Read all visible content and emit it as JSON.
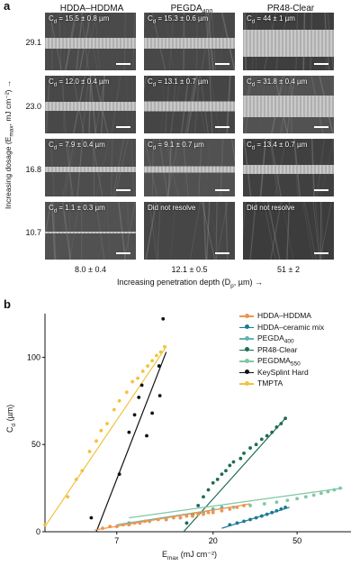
{
  "panel_a": {
    "label": "a",
    "columns": [
      "HDDA–HDDMA",
      "PEGDA",
      "PR48-Clear"
    ],
    "pegda_sub": "400",
    "row_dosages": [
      "29.1",
      "23.0",
      "16.8",
      "10.7"
    ],
    "y_axis_label": "Increasing dosage (E",
    "y_axis_sub": "max",
    "y_axis_tail": ", mJ cm⁻²) →",
    "x_axis_label": "Increasing penetration depth (D",
    "x_axis_sub": "p",
    "x_axis_tail": ", µm) →",
    "penetration_depths": [
      "8.0 ± 0.4",
      "12.1 ± 0.5",
      "51 ± 2"
    ],
    "cell_captions": [
      [
        "= 15.5 ± 0.8 µm",
        "= 15.3 ± 0.6 µm",
        "= 44 ± 1 µm"
      ],
      [
        "= 12.0 ± 0.4 µm",
        "= 13.1 ± 0.7 µm",
        "= 31.8 ± 0.4 µm"
      ],
      [
        "= 7.9 ± 0.4 µm",
        "= 9.1 ± 0.7 µm",
        "= 13.4 ± 0.7 µm"
      ],
      [
        "= 1.1 ± 0.3 µm",
        "Did not resolve",
        "Did not resolve"
      ]
    ],
    "cd_symbol": "C",
    "cd_sub": "d"
  },
  "panel_b": {
    "label": "b",
    "ylabel": "C",
    "ylabel_sub": "d",
    "ylabel_tail": " (µm)",
    "xlabel": "E",
    "xlabel_sub": "max",
    "xlabel_tail": " (mJ cm⁻²)",
    "legend": [
      {
        "name": "HDDA–HDDMA",
        "sub": "",
        "color": "#f0954a"
      },
      {
        "name": "HDDA–ceramic mix",
        "sub": "",
        "color": "#1a7a94"
      },
      {
        "name": "PEGDA",
        "sub": "400",
        "color": "#5fb4b0"
      },
      {
        "name": "PR48-Clear",
        "sub": "",
        "color": "#1f6b55"
      },
      {
        "name": "PEGDMA",
        "sub": "550",
        "color": "#7fc7a3"
      },
      {
        "name": "KeySplint Hard",
        "sub": "",
        "color": "#111111"
      },
      {
        "name": "TMPTA",
        "sub": "",
        "color": "#f2c23c"
      }
    ]
  },
  "chart_data": {
    "type": "scatter",
    "x_scale": "log",
    "xlim": [
      3.2,
      90
    ],
    "ylim": [
      0,
      125
    ],
    "x_ticks": [
      "7",
      "20",
      "50"
    ],
    "x_tick_values": [
      7,
      20,
      50
    ],
    "y_ticks": [
      "0",
      "50",
      "100"
    ],
    "y_tick_values": [
      0,
      50,
      100
    ],
    "series": [
      {
        "name": "TMPTA",
        "color": "#f2c23c",
        "points": [
          [
            3.2,
            4
          ],
          [
            4.1,
            20
          ],
          [
            4.5,
            30
          ],
          [
            4.8,
            35
          ],
          [
            5.2,
            46
          ],
          [
            5.6,
            52
          ],
          [
            5.9,
            58
          ],
          [
            6.3,
            62
          ],
          [
            6.8,
            70
          ],
          [
            7.2,
            75
          ],
          [
            7.8,
            80
          ],
          [
            8.3,
            86
          ],
          [
            8.8,
            88
          ],
          [
            9.3,
            92
          ],
          [
            9.8,
            95
          ],
          [
            10.3,
            98
          ],
          [
            10.8,
            101
          ],
          [
            11.3,
            103
          ],
          [
            11.8,
            106
          ]
        ],
        "fit": [
          [
            3.2,
            3
          ],
          [
            12,
            106
          ]
        ]
      },
      {
        "name": "KeySplint Hard",
        "color": "#111111",
        "points": [
          [
            5.3,
            8
          ],
          [
            7.2,
            33
          ],
          [
            8,
            57
          ],
          [
            8.5,
            67
          ],
          [
            8.9,
            77
          ],
          [
            9.2,
            84
          ],
          [
            9.7,
            55
          ],
          [
            10.3,
            68
          ],
          [
            11.1,
            95
          ],
          [
            11.6,
            122
          ],
          [
            11.2,
            78
          ]
        ],
        "fit": [
          [
            5.6,
            0
          ],
          [
            12,
            103
          ]
        ]
      },
      {
        "name": "PR48-Clear",
        "color": "#1f6b55",
        "points": [
          [
            15,
            5
          ],
          [
            16,
            10
          ],
          [
            17,
            15
          ],
          [
            18,
            20
          ],
          [
            19,
            24
          ],
          [
            20,
            28
          ],
          [
            21,
            30
          ],
          [
            22,
            33
          ],
          [
            23,
            35
          ],
          [
            24,
            38
          ],
          [
            25,
            40
          ],
          [
            27,
            42
          ],
          [
            28,
            45
          ],
          [
            30,
            48
          ],
          [
            32,
            50
          ],
          [
            34,
            53
          ],
          [
            36,
            55
          ],
          [
            38,
            57
          ],
          [
            40,
            60
          ],
          [
            42,
            62
          ],
          [
            44,
            65
          ]
        ],
        "fit": [
          [
            14.5,
            0
          ],
          [
            44,
            65
          ]
        ]
      },
      {
        "name": "PEGDMA",
        "color": "#7fc7a3",
        "points": [
          [
            20,
            12
          ],
          [
            25,
            14
          ],
          [
            30,
            15
          ],
          [
            35,
            16
          ],
          [
            40,
            17
          ],
          [
            45,
            18
          ],
          [
            50,
            19
          ],
          [
            55,
            20
          ],
          [
            60,
            21
          ],
          [
            65,
            22
          ],
          [
            70,
            23
          ],
          [
            75,
            24
          ],
          [
            80,
            25
          ]
        ],
        "fit": [
          [
            8,
            8
          ],
          [
            82,
            25
          ]
        ]
      },
      {
        "name": "PEGDA",
        "color": "#5fb4b0",
        "points": [
          [
            8,
            5
          ],
          [
            10,
            6
          ],
          [
            12,
            7
          ],
          [
            14,
            8
          ],
          [
            16,
            9
          ],
          [
            18,
            11
          ],
          [
            20,
            13
          ],
          [
            22,
            14
          ]
        ],
        "fit": [
          [
            7,
            4
          ],
          [
            24,
            14
          ]
        ]
      },
      {
        "name": "HDDA–HDDMA",
        "color": "#f0954a",
        "points": [
          [
            6,
            2
          ],
          [
            6.5,
            3
          ],
          [
            7,
            3
          ],
          [
            7.5,
            4
          ],
          [
            8,
            4
          ],
          [
            8.5,
            5
          ],
          [
            9,
            5
          ],
          [
            9.5,
            6
          ],
          [
            10,
            6
          ],
          [
            11,
            7
          ],
          [
            12,
            7
          ],
          [
            13,
            8
          ],
          [
            14,
            8
          ],
          [
            15,
            9
          ],
          [
            16,
            9
          ],
          [
            17,
            10
          ],
          [
            18,
            10
          ],
          [
            19,
            11
          ],
          [
            20,
            11
          ],
          [
            22,
            12
          ],
          [
            24,
            13
          ],
          [
            26,
            14
          ],
          [
            28,
            15
          ]
        ],
        "fit": [
          [
            5.5,
            1
          ],
          [
            30,
            16
          ]
        ]
      },
      {
        "name": "HDDA–ceramic mix",
        "color": "#1a7a94",
        "points": [
          [
            24,
            4
          ],
          [
            26,
            5
          ],
          [
            28,
            6
          ],
          [
            30,
            7
          ],
          [
            32,
            8
          ],
          [
            34,
            9
          ],
          [
            36,
            10
          ],
          [
            38,
            11
          ],
          [
            40,
            12
          ],
          [
            42,
            13
          ],
          [
            44,
            14
          ]
        ],
        "fit": [
          [
            22,
            2
          ],
          [
            46,
            14
          ]
        ]
      }
    ]
  }
}
